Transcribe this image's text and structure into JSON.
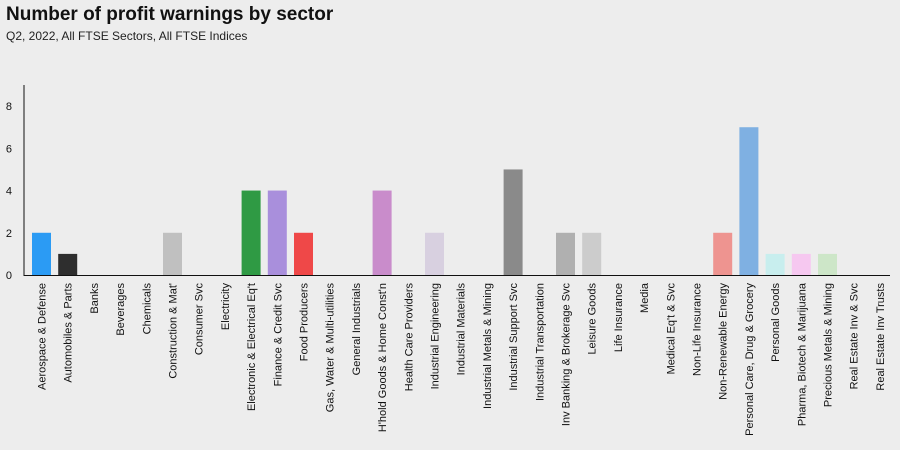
{
  "chart_data": {
    "type": "bar",
    "title": "Number of profit warnings by sector",
    "subtitle": "Q2, 2022, All FTSE Sectors, All FTSE Indices",
    "xlabel": "",
    "ylabel": "",
    "ylim": [
      0,
      9
    ],
    "yticks": [
      0,
      2,
      4,
      6,
      8
    ],
    "grid": false,
    "categories": [
      "Aerospace & Defense",
      "Automobiles & Parts",
      "Banks",
      "Beverages",
      "Chemicals",
      "Construction & Mat'",
      "Consumer Svc",
      "Electricity",
      "Electronic & Electrical Eq't",
      "Finance & Credit Svc",
      "Food Producers",
      "Gas, Water & Multi-utilities",
      "General Industrials",
      "H'hold Goods & Home Const'n",
      "Health Care Providers",
      "Industrial Engineering",
      "Industrial Materials",
      "Industrial Metals & Mining",
      "Industrial Support Svc",
      "Industrial Transportation",
      "Inv Banking & Brokerage Svc",
      "Leisure Goods",
      "Life Insurance",
      "Media",
      "Medical Eq't & Svc",
      "Non-Life Insurance",
      "Non-Renewable Energy",
      "Personal Care, Drug & Grocery",
      "Personal Goods",
      "Pharma, Biotech & Marijuana",
      "Precious Metals & Mining",
      "Real Estate Inv & Svc",
      "Real Estate Inv Trusts"
    ],
    "values": [
      2,
      1,
      0,
      0,
      0,
      2,
      0,
      0,
      4,
      4,
      2,
      0,
      0,
      4,
      0,
      2,
      0,
      0,
      5,
      0,
      2,
      2,
      0,
      0,
      0,
      0,
      2,
      7,
      1,
      1,
      1,
      0,
      0
    ],
    "colors": [
      "#2b9bf4",
      "#2e2e2e",
      "#cccccc",
      "#cccccc",
      "#cccccc",
      "#c0c0c0",
      "#cccccc",
      "#cccccc",
      "#2f9a44",
      "#a98fdc",
      "#ef4848",
      "#cccccc",
      "#cccccc",
      "#c98ccb",
      "#cccccc",
      "#d8d0e0",
      "#cccccc",
      "#cccccc",
      "#8a8a8a",
      "#cccccc",
      "#b0b0b0",
      "#cccccc",
      "#cccccc",
      "#cccccc",
      "#cccccc",
      "#cccccc",
      "#ee9490",
      "#7fb0e2",
      "#c8eeee",
      "#f6c8f0",
      "#cde6c8",
      "#cccccc",
      "#cccccc"
    ]
  }
}
